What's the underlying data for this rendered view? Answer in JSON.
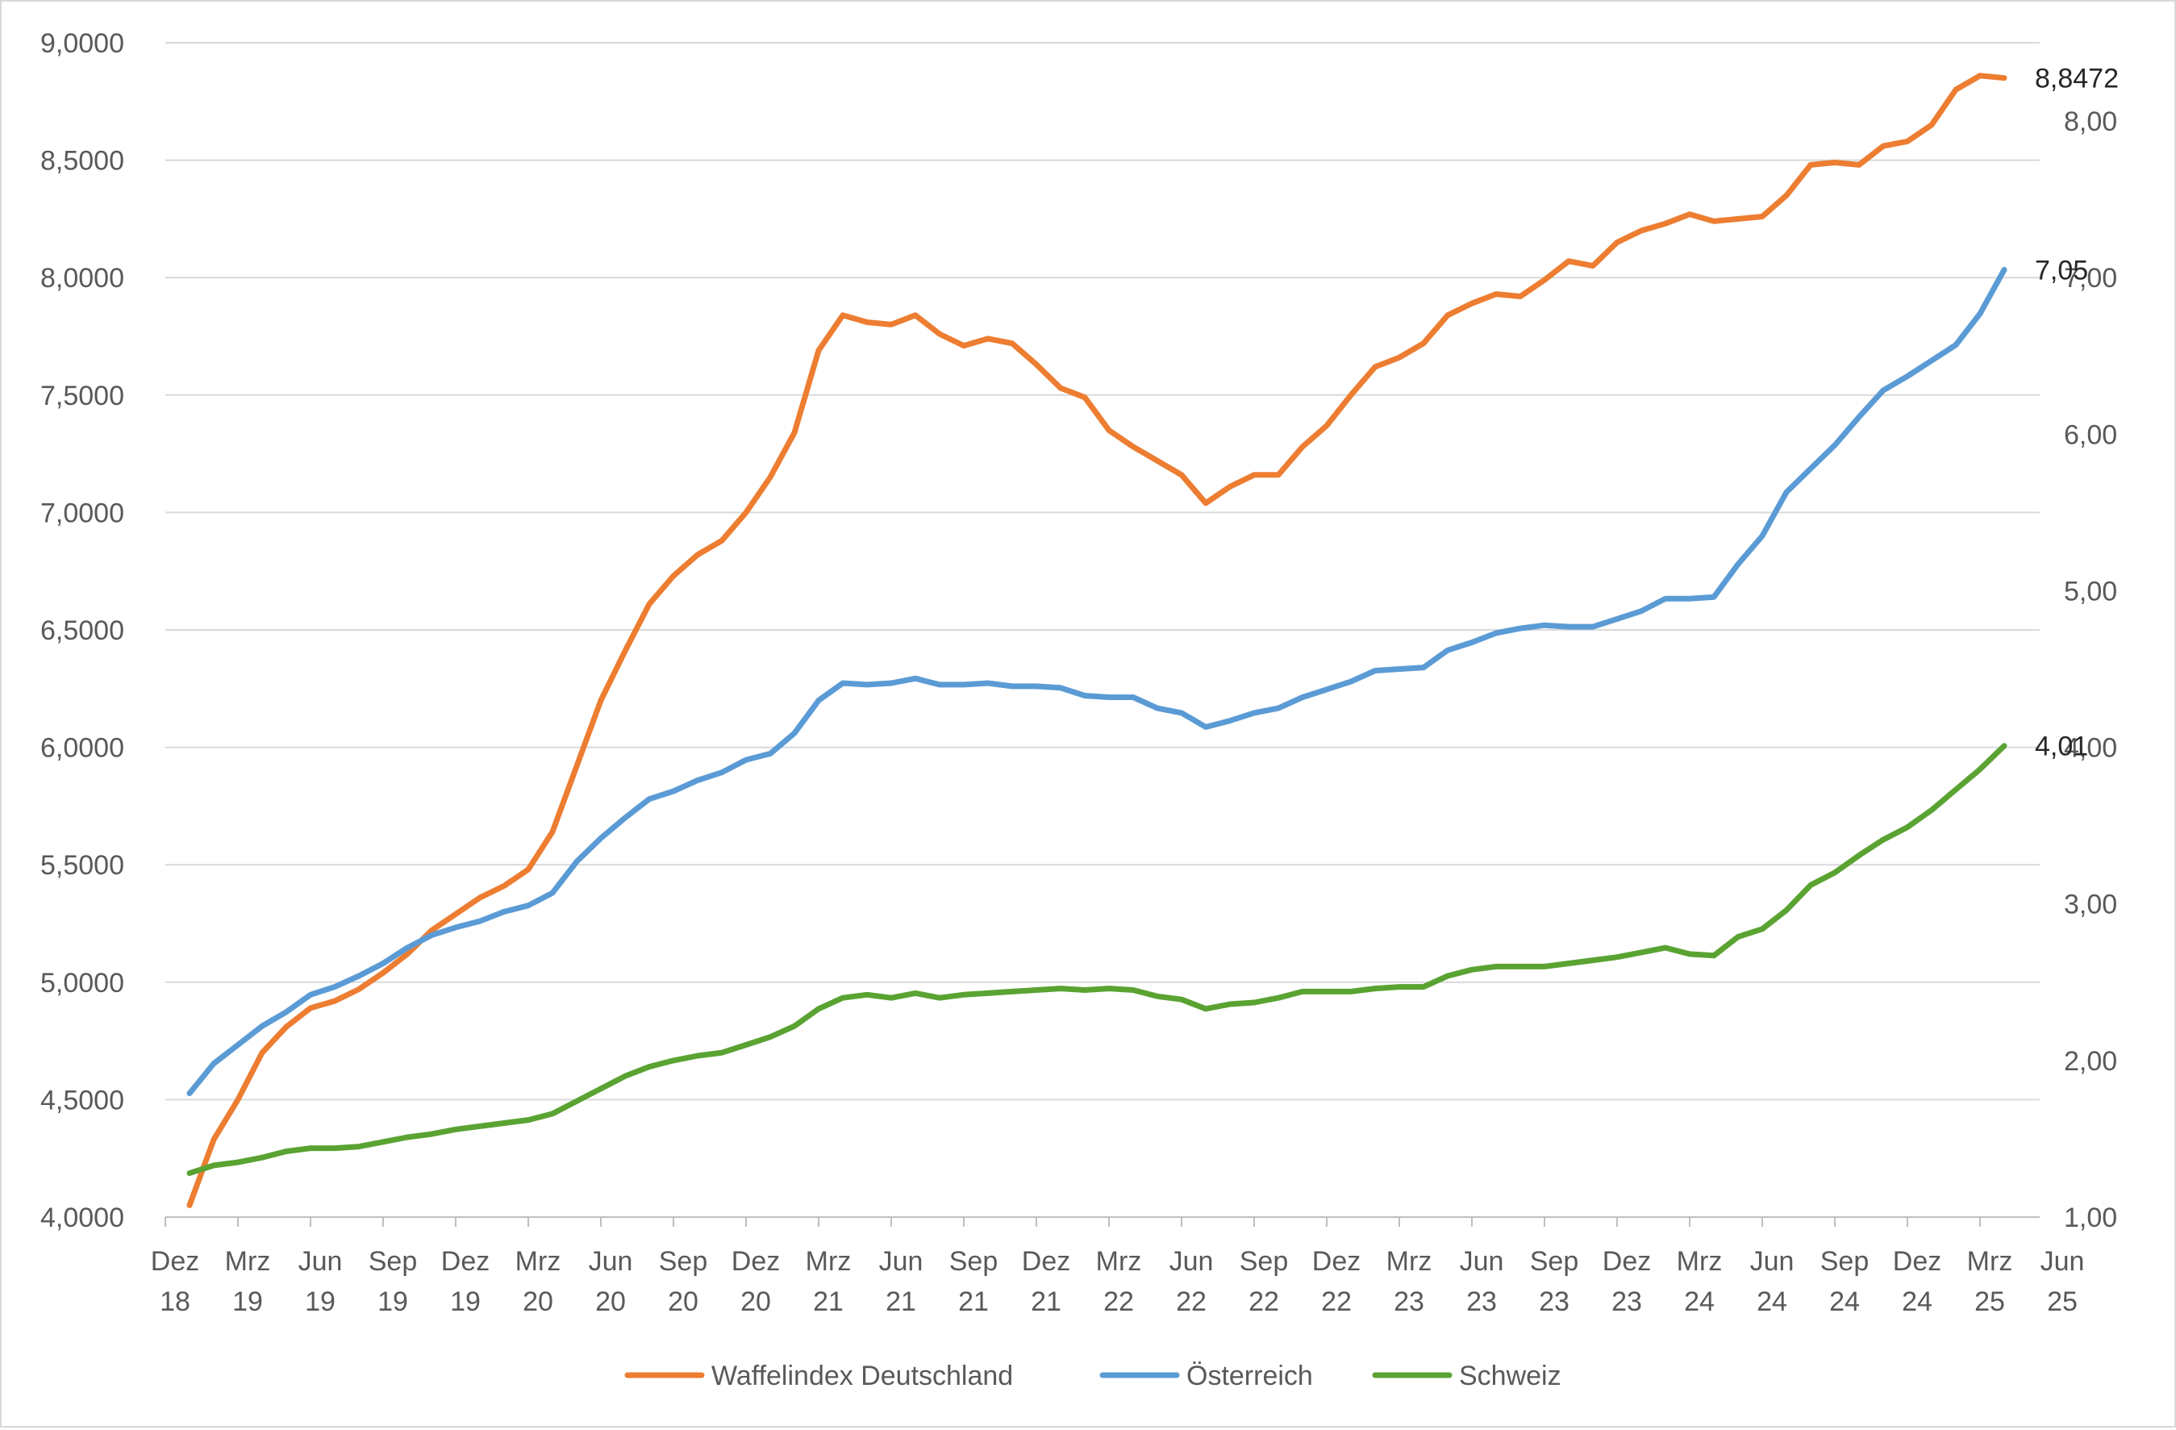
{
  "chart_data": {
    "type": "line",
    "title": "",
    "xlabel": "",
    "ylabel": "",
    "ylim_left": [
      4.0,
      9.0
    ],
    "ylim_right": [
      1.0,
      8.5
    ],
    "left_ticks": [
      "4,0000",
      "4,5000",
      "5,0000",
      "5,5000",
      "6,0000",
      "6,5000",
      "7,0000",
      "7,5000",
      "8,0000",
      "8,5000",
      "9,0000"
    ],
    "right_ticks": [
      "1,00",
      "2,00",
      "3,00",
      "4,00",
      "5,00",
      "6,00",
      "7,00",
      "8,00"
    ],
    "x_ticks": [
      [
        "Dez",
        "18"
      ],
      [
        "Mrz",
        "19"
      ],
      [
        "Jun",
        "19"
      ],
      [
        "Sep",
        "19"
      ],
      [
        "Dez",
        "19"
      ],
      [
        "Mrz",
        "20"
      ],
      [
        "Jun",
        "20"
      ],
      [
        "Sep",
        "20"
      ],
      [
        "Dez",
        "20"
      ],
      [
        "Mrz",
        "21"
      ],
      [
        "Jun",
        "21"
      ],
      [
        "Sep",
        "21"
      ],
      [
        "Dez",
        "21"
      ],
      [
        "Mrz",
        "22"
      ],
      [
        "Jun",
        "22"
      ],
      [
        "Sep",
        "22"
      ],
      [
        "Dez",
        "22"
      ],
      [
        "Mrz",
        "23"
      ],
      [
        "Jun",
        "23"
      ],
      [
        "Sep",
        "23"
      ],
      [
        "Dez",
        "23"
      ],
      [
        "Mrz",
        "24"
      ],
      [
        "Jun",
        "24"
      ],
      [
        "Sep",
        "24"
      ],
      [
        "Dez",
        "24"
      ],
      [
        "Mrz",
        "25"
      ],
      [
        "Jun",
        "25"
      ]
    ],
    "grid": true,
    "legend_position": "bottom",
    "series": [
      {
        "name": "Waffelindex Deutschland",
        "axis": "left",
        "color": "#ed7d31",
        "end_label": "8,8472",
        "values": [
          4.05,
          4.33,
          4.5,
          4.7,
          4.81,
          4.89,
          4.92,
          4.97,
          5.04,
          5.12,
          5.22,
          5.29,
          5.36,
          5.41,
          5.48,
          5.64,
          5.92,
          6.2,
          6.41,
          6.61,
          6.73,
          6.82,
          6.88,
          7.0,
          7.15,
          7.34,
          7.69,
          7.84,
          7.81,
          7.8,
          7.84,
          7.76,
          7.71,
          7.74,
          7.72,
          7.63,
          7.53,
          7.49,
          7.35,
          7.28,
          7.22,
          7.16,
          7.04,
          7.11,
          7.16,
          7.16,
          7.28,
          7.37,
          7.5,
          7.62,
          7.66,
          7.72,
          7.84,
          7.89,
          7.93,
          7.92,
          7.99,
          8.07,
          8.05,
          8.15,
          8.2,
          8.23,
          8.27,
          8.24,
          8.25,
          8.26,
          8.35,
          8.48,
          8.49,
          8.48,
          8.56,
          8.58,
          8.65,
          8.8,
          8.86,
          8.85
        ]
      },
      {
        "name": "Österreich",
        "axis": "right",
        "color": "#5b9bd5",
        "end_label": "7,05",
        "values": [
          1.79,
          1.98,
          2.1,
          2.22,
          2.31,
          2.42,
          2.47,
          2.54,
          2.62,
          2.72,
          2.8,
          2.85,
          2.89,
          2.95,
          2.99,
          3.07,
          3.27,
          3.42,
          3.55,
          3.67,
          3.72,
          3.79,
          3.84,
          3.92,
          3.96,
          4.09,
          4.3,
          4.41,
          4.4,
          4.41,
          4.44,
          4.4,
          4.4,
          4.41,
          4.39,
          4.39,
          4.38,
          4.33,
          4.32,
          4.32,
          4.25,
          4.22,
          4.13,
          4.17,
          4.22,
          4.25,
          4.32,
          4.37,
          4.42,
          4.49,
          4.5,
          4.51,
          4.62,
          4.67,
          4.73,
          4.76,
          4.78,
          4.77,
          4.77,
          4.82,
          4.87,
          4.95,
          4.95,
          4.96,
          5.17,
          5.35,
          5.63,
          5.78,
          5.93,
          6.11,
          6.28,
          6.37,
          6.47,
          6.57,
          6.77,
          7.05
        ]
      },
      {
        "name": "Schweiz",
        "axis": "right",
        "color": "#5aa332",
        "end_label": "4,01",
        "values": [
          1.28,
          1.33,
          1.35,
          1.38,
          1.42,
          1.44,
          1.44,
          1.45,
          1.48,
          1.51,
          1.53,
          1.56,
          1.58,
          1.6,
          1.62,
          1.66,
          1.74,
          1.82,
          1.9,
          1.96,
          2.0,
          2.03,
          2.05,
          2.1,
          2.15,
          2.22,
          2.33,
          2.4,
          2.42,
          2.4,
          2.43,
          2.4,
          2.42,
          2.43,
          2.44,
          2.45,
          2.46,
          2.45,
          2.46,
          2.45,
          2.41,
          2.39,
          2.33,
          2.36,
          2.37,
          2.4,
          2.44,
          2.44,
          2.44,
          2.46,
          2.47,
          2.47,
          2.54,
          2.58,
          2.6,
          2.6,
          2.6,
          2.62,
          2.64,
          2.66,
          2.69,
          2.72,
          2.68,
          2.67,
          2.79,
          2.84,
          2.96,
          3.12,
          3.2,
          3.31,
          3.41,
          3.49,
          3.6,
          3.73,
          3.86,
          4.01
        ]
      }
    ]
  }
}
